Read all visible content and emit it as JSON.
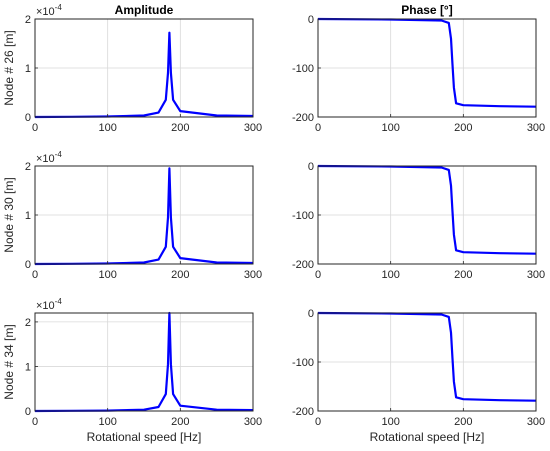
{
  "column_titles": [
    "Amplitude",
    "Phase [°]"
  ],
  "xlabel": "Rotational speed [Hz]",
  "exponent_base": "×10",
  "exponent_power": "-4",
  "line_color": "#0000ff",
  "chart_data": [
    {
      "type": "line",
      "row": 1,
      "col": 1,
      "title": "Amplitude",
      "ylabel": "Node # 26 [m]",
      "xlabel": "",
      "xlim": [
        0,
        300
      ],
      "ylim": [
        0,
        2
      ],
      "xticks": [
        0,
        100,
        200,
        300
      ],
      "yticks": [
        0,
        1,
        2
      ],
      "y_multiplier": "×10^-4",
      "grid": true,
      "peak": {
        "x": 185,
        "y": 1.72
      },
      "x": [
        0,
        50,
        100,
        150,
        170,
        180,
        183,
        185,
        187,
        190,
        200,
        250,
        300
      ],
      "y": [
        0.0,
        0.005,
        0.01,
        0.03,
        0.09,
        0.35,
        0.9,
        1.72,
        0.9,
        0.35,
        0.12,
        0.03,
        0.02
      ]
    },
    {
      "type": "line",
      "row": 1,
      "col": 2,
      "title": "Phase [°]",
      "ylabel": "",
      "xlabel": "",
      "xlim": [
        0,
        300
      ],
      "ylim": [
        -200,
        0
      ],
      "xticks": [
        0,
        100,
        200,
        300
      ],
      "yticks": [
        0,
        -100,
        -200
      ],
      "grid": true,
      "x": [
        0,
        100,
        170,
        180,
        183,
        185,
        187,
        190,
        200,
        250,
        300
      ],
      "y": [
        0,
        -1,
        -3,
        -8,
        -40,
        -90,
        -140,
        -172,
        -176,
        -178,
        -179
      ]
    },
    {
      "type": "line",
      "row": 2,
      "col": 1,
      "title": "",
      "ylabel": "Node # 30 [m]",
      "xlabel": "",
      "xlim": [
        0,
        300
      ],
      "ylim": [
        0,
        2
      ],
      "xticks": [
        0,
        100,
        200,
        300
      ],
      "yticks": [
        0,
        1,
        2
      ],
      "y_multiplier": "×10^-4",
      "grid": true,
      "peak": {
        "x": 185,
        "y": 1.95
      },
      "x": [
        0,
        50,
        100,
        150,
        170,
        180,
        183,
        185,
        187,
        190,
        200,
        250,
        300
      ],
      "y": [
        0.0,
        0.005,
        0.01,
        0.03,
        0.09,
        0.35,
        0.95,
        1.95,
        0.95,
        0.35,
        0.12,
        0.03,
        0.02
      ]
    },
    {
      "type": "line",
      "row": 2,
      "col": 2,
      "title": "",
      "ylabel": "",
      "xlabel": "",
      "xlim": [
        0,
        300
      ],
      "ylim": [
        -200,
        0
      ],
      "xticks": [
        0,
        100,
        200,
        300
      ],
      "yticks": [
        0,
        -100,
        -200
      ],
      "grid": true,
      "x": [
        0,
        100,
        170,
        180,
        183,
        185,
        187,
        190,
        200,
        250,
        300
      ],
      "y": [
        0,
        -1,
        -3,
        -8,
        -40,
        -90,
        -140,
        -172,
        -176,
        -178,
        -179
      ]
    },
    {
      "type": "line",
      "row": 3,
      "col": 1,
      "title": "",
      "ylabel": "Node # 34 [m]",
      "xlabel": "Rotational speed [Hz]",
      "xlim": [
        0,
        300
      ],
      "ylim": [
        0,
        2.2
      ],
      "xticks": [
        0,
        100,
        200,
        300
      ],
      "yticks": [
        0,
        1,
        2
      ],
      "y_multiplier": "×10^-4",
      "grid": true,
      "peak": {
        "x": 185,
        "y": 2.2
      },
      "x": [
        0,
        50,
        100,
        150,
        170,
        180,
        183,
        185,
        187,
        190,
        200,
        250,
        300
      ],
      "y": [
        0.0,
        0.005,
        0.01,
        0.03,
        0.09,
        0.38,
        1.05,
        2.2,
        1.05,
        0.38,
        0.12,
        0.03,
        0.02
      ]
    },
    {
      "type": "line",
      "row": 3,
      "col": 2,
      "title": "",
      "ylabel": "",
      "xlabel": "Rotational speed [Hz]",
      "xlim": [
        0,
        300
      ],
      "ylim": [
        -200,
        0
      ],
      "xticks": [
        0,
        100,
        200,
        300
      ],
      "yticks": [
        0,
        -100,
        -200
      ],
      "grid": true,
      "x": [
        0,
        100,
        170,
        180,
        183,
        185,
        187,
        190,
        200,
        250,
        300
      ],
      "y": [
        0,
        -1,
        -3,
        -8,
        -40,
        -90,
        -140,
        -172,
        -176,
        -178,
        -179
      ]
    }
  ]
}
